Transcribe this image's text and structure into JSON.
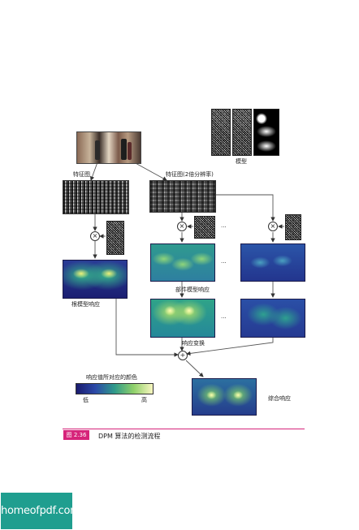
{
  "labels": {
    "feature_map": "特征图",
    "feature_map_2x": "特征图(2倍分辨率)",
    "model": "模型",
    "root_response": "根模型响应",
    "part_response": "部件模型响应",
    "transformed_response": "响应变换",
    "combined_response": "综合响应",
    "colorbar_title": "响应值所对应的颜色",
    "colorbar_low": "低",
    "colorbar_high": "高",
    "ellipsis": "···",
    "multiply_symbol": "×",
    "add_symbol": "+"
  },
  "caption": {
    "number": "图 2.36",
    "text": "DPM 算法的检测流程"
  },
  "watermark": {
    "text": "homeofpdf.com"
  },
  "colors": {
    "caption_accent": "#d6247a",
    "watermark_bg": "#1f9e8f",
    "heat_low": "#1a1b6e",
    "heat_mid": "#2f8f8a",
    "heat_high": "#f5f27a"
  }
}
